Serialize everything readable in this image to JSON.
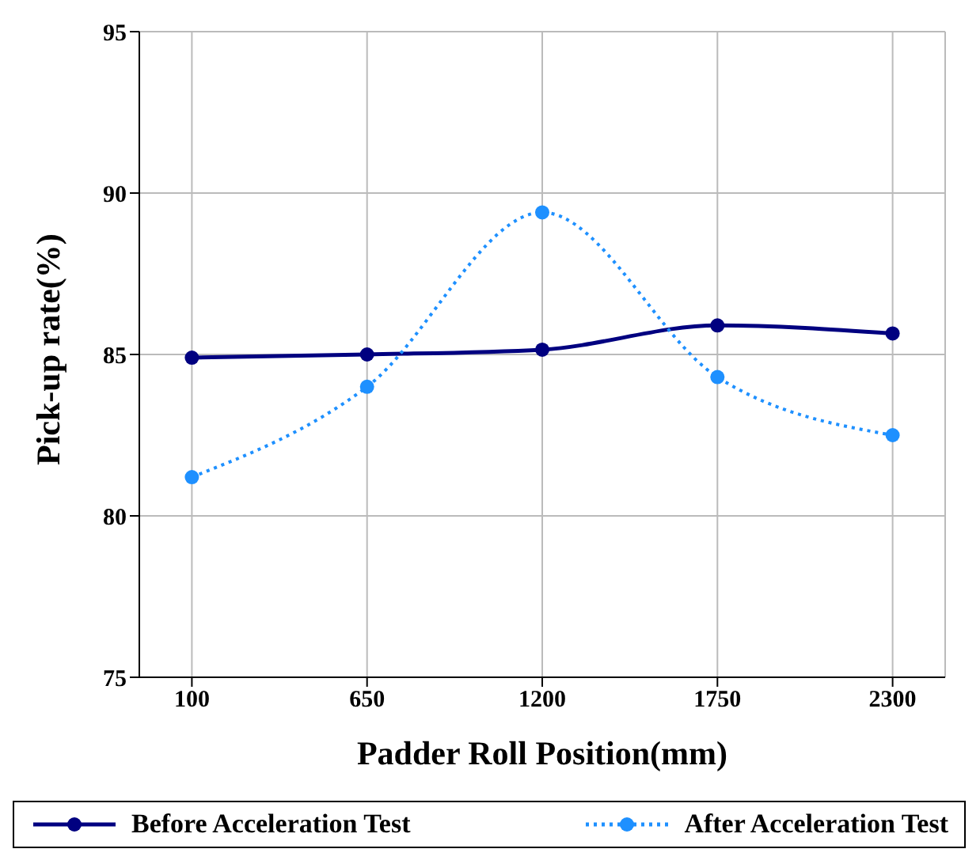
{
  "chart_data": {
    "type": "line",
    "xlabel": "Padder Roll Position(mm)",
    "ylabel": "Pick-up rate(%)",
    "categories": [
      "100",
      "650",
      "1200",
      "1750",
      "2300"
    ],
    "series": [
      {
        "name": "Before Acceleration Test",
        "color": "#000080",
        "values": [
          84.9,
          85.0,
          85.15,
          85.9,
          85.65
        ],
        "line_style": "solid"
      },
      {
        "name": "After Acceleration Test",
        "color": "#1e90ff",
        "values": [
          81.2,
          84.0,
          89.4,
          84.3,
          82.5
        ],
        "line_style": "dotted"
      }
    ],
    "ylim": [
      75,
      95
    ],
    "yticks": [
      75,
      80,
      85,
      90,
      95
    ],
    "grid": true,
    "legend": "bottom",
    "marker": "circle"
  }
}
